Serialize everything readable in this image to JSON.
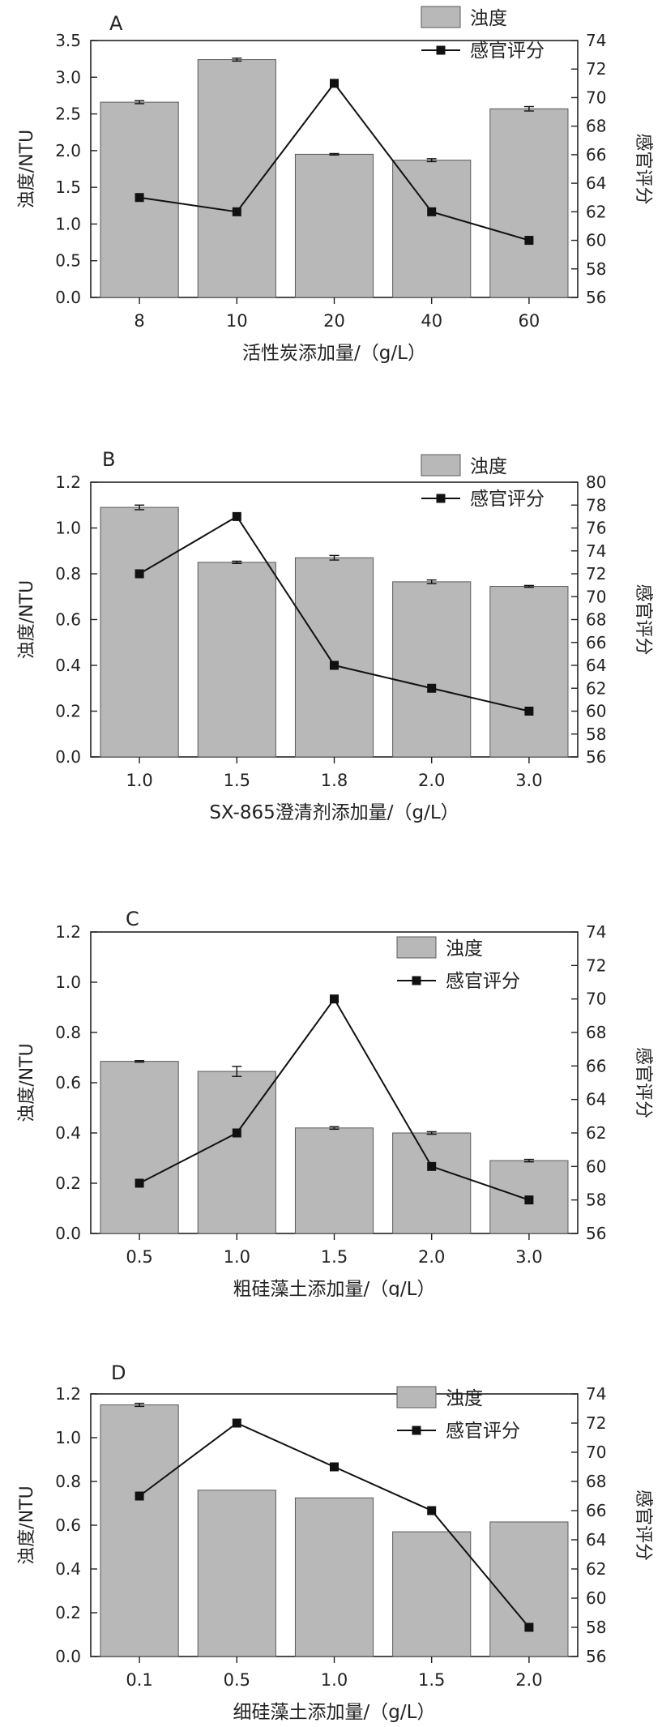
{
  "chart_data": [
    {
      "type": "bar",
      "panel": "A",
      "categories": [
        "8",
        "10",
        "20",
        "40",
        "60"
      ],
      "series": [
        {
          "name": "浊度",
          "type": "bar",
          "axis": "left",
          "values": [
            2.66,
            3.24,
            1.95,
            1.87,
            2.57
          ],
          "errors": [
            0.02,
            0.02,
            0.01,
            0.02,
            0.03
          ]
        },
        {
          "name": "感官评分",
          "type": "line",
          "axis": "right",
          "values": [
            63,
            62,
            71,
            62,
            60
          ]
        }
      ],
      "xlabel": "活性炭添加量/（g/L）",
      "ylabel": "浊度/NTU",
      "y2label": "感官评分",
      "ylim": [
        0,
        3.5
      ],
      "yticks": [
        "0.0",
        "0.5",
        "1.0",
        "1.5",
        "2.0",
        "2.5",
        "3.0",
        "3.5"
      ],
      "y2lim": [
        56,
        74
      ],
      "y2ticks": [
        "56",
        "58",
        "60",
        "62",
        "64",
        "66",
        "68",
        "70",
        "72",
        "74"
      ],
      "legend": "top-center",
      "grid": false
    },
    {
      "type": "bar",
      "panel": "B",
      "categories": [
        "1.0",
        "1.5",
        "1.8",
        "2.0",
        "3.0"
      ],
      "series": [
        {
          "name": "浊度",
          "type": "bar",
          "axis": "left",
          "values": [
            1.09,
            0.85,
            0.87,
            0.765,
            0.745
          ],
          "errors": [
            0.01,
            0.005,
            0.01,
            0.008,
            0.004
          ]
        },
        {
          "name": "感官评分",
          "type": "line",
          "axis": "right",
          "values": [
            72,
            77,
            64,
            62,
            60
          ]
        }
      ],
      "xlabel": "SX-865澄清剂添加量/（g/L）",
      "ylabel": "浊度/NTU",
      "y2label": "感官评分",
      "ylim": [
        0,
        1.2
      ],
      "yticks": [
        "0.0",
        "0.2",
        "0.4",
        "0.6",
        "0.8",
        "1.0",
        "1.2"
      ],
      "y2lim": [
        56,
        80
      ],
      "y2ticks": [
        "56",
        "58",
        "60",
        "62",
        "64",
        "66",
        "68",
        "70",
        "72",
        "74",
        "76",
        "78",
        "80"
      ],
      "legend": "top-right",
      "grid": false
    },
    {
      "type": "bar",
      "panel": "C",
      "categories": [
        "0.5",
        "1.0",
        "1.5",
        "2.0",
        "3.0"
      ],
      "series": [
        {
          "name": "浊度",
          "type": "bar",
          "axis": "left",
          "values": [
            0.685,
            0.645,
            0.42,
            0.4,
            0.29
          ],
          "errors": [
            0.003,
            0.02,
            0.005,
            0.005,
            0.005
          ]
        },
        {
          "name": "感官评分",
          "type": "line",
          "axis": "right",
          "values": [
            59,
            62,
            70,
            60,
            58
          ]
        }
      ],
      "xlabel": "粗硅藻土添加量/（g/L）",
      "ylabel": "浊度/NTU",
      "y2label": "感官评分",
      "ylim": [
        0,
        1.2
      ],
      "yticks": [
        "0.0",
        "0.2",
        "0.4",
        "0.6",
        "0.8",
        "1.0",
        "1.2"
      ],
      "y2lim": [
        56,
        74
      ],
      "y2ticks": [
        "56",
        "58",
        "60",
        "62",
        "64",
        "66",
        "68",
        "70",
        "72",
        "74"
      ],
      "legend": "top-right",
      "grid": false
    },
    {
      "type": "bar",
      "panel": "D",
      "categories": [
        "0.1",
        "0.5",
        "1.0",
        "1.5",
        "2.0"
      ],
      "series": [
        {
          "name": "浊度",
          "type": "bar",
          "axis": "left",
          "values": [
            1.15,
            0.76,
            0.725,
            0.57,
            0.615
          ],
          "errors": [
            0.007,
            0,
            0,
            0,
            0
          ]
        },
        {
          "name": "感官评分",
          "type": "line",
          "axis": "right",
          "values": [
            67,
            72,
            69,
            66,
            58
          ]
        }
      ],
      "xlabel": "细硅藻土添加量/（g/L）",
      "ylabel": "浊度/NTU",
      "y2label": "感官评分",
      "ylim": [
        0,
        1.2
      ],
      "yticks": [
        "0.0",
        "0.2",
        "0.4",
        "0.6",
        "0.8",
        "1.0",
        "1.2"
      ],
      "y2lim": [
        56,
        74
      ],
      "y2ticks": [
        "56",
        "58",
        "60",
        "62",
        "64",
        "66",
        "68",
        "70",
        "72",
        "74"
      ],
      "legend": "top-right",
      "grid": false
    }
  ],
  "style": {
    "bar_fill": "#b8b8b8",
    "bar_stroke": "#5a5a5a",
    "line_color": "#111111",
    "axis_color": "#222222"
  }
}
